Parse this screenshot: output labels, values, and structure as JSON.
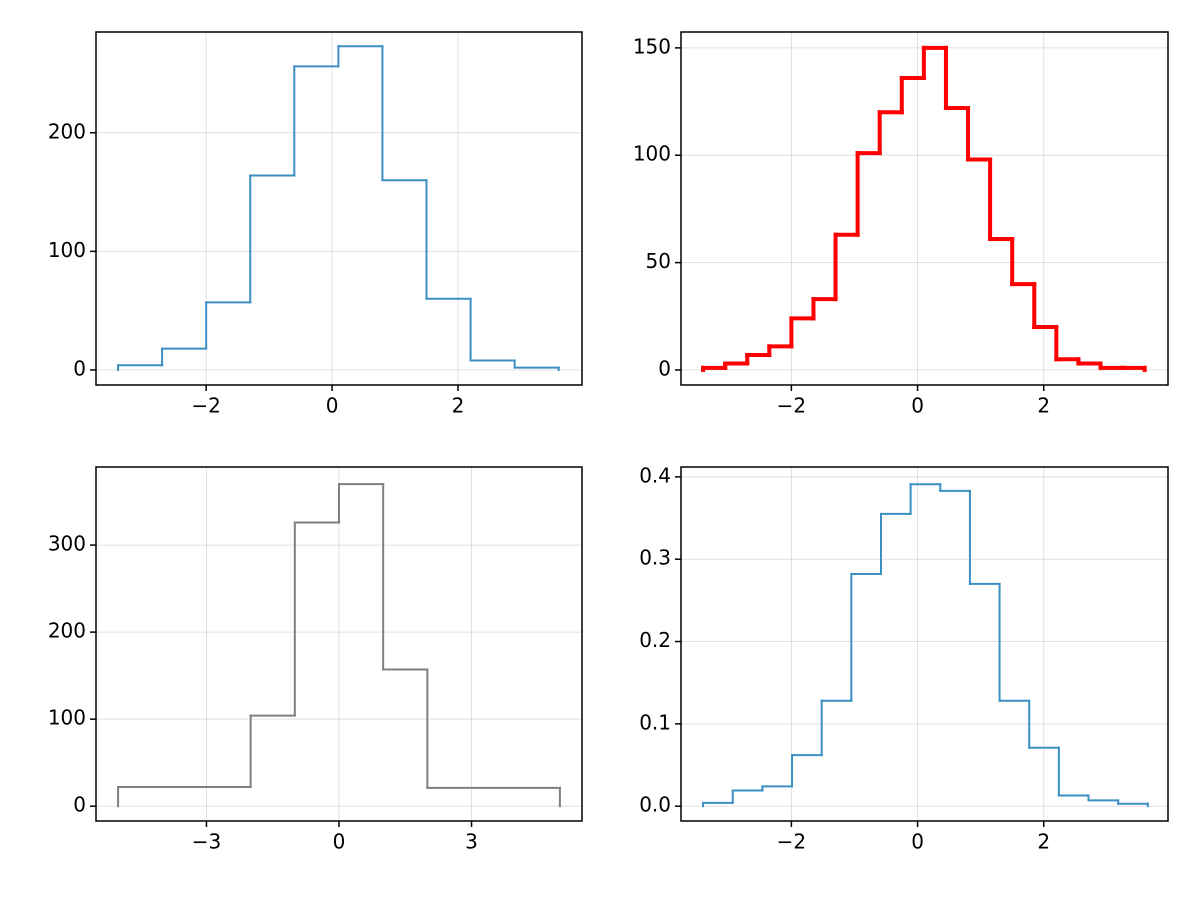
{
  "chart_data": [
    {
      "type": "histogram",
      "color": "#3a8fc3",
      "line_width": 2,
      "bins": [
        -3.4,
        -2.7,
        -2.0,
        -1.3,
        -0.6,
        0.1,
        0.8,
        1.5,
        2.2,
        2.9,
        3.6
      ],
      "values": [
        4,
        18,
        57,
        164,
        256,
        273,
        160,
        60,
        8,
        2
      ],
      "xlim": [
        -3.75,
        3.97
      ],
      "ylim": [
        -12.7,
        285
      ],
      "xticks": [
        {
          "value": -2,
          "label": "−2"
        },
        0,
        2
      ],
      "yticks": [
        0,
        100,
        200
      ],
      "grid": true
    },
    {
      "type": "histogram",
      "color": "#ff0000",
      "line_width": 4,
      "bins": [
        -3.4,
        -3.05,
        -2.7,
        -2.35,
        -2.0,
        -1.65,
        -1.3,
        -0.95,
        -0.6,
        -0.25,
        0.1,
        0.45,
        0.8,
        1.15,
        1.5,
        1.85,
        2.2,
        2.55,
        2.9,
        3.25,
        3.6
      ],
      "values": [
        1,
        3,
        7,
        11,
        24,
        33,
        63,
        101,
        120,
        136,
        150,
        122,
        98,
        61,
        40,
        20,
        5,
        3,
        1,
        1
      ],
      "xlim": [
        -3.75,
        3.97
      ],
      "ylim": [
        -7,
        157.4
      ],
      "xticks": [
        {
          "value": -2,
          "label": "−2"
        },
        0,
        2
      ],
      "yticks": [
        0,
        50,
        100,
        150
      ],
      "grid": true
    },
    {
      "type": "histogram",
      "color": "#808080",
      "line_width": 2,
      "bins": [
        -5,
        -2,
        -1,
        0,
        1,
        2,
        5
      ],
      "values": [
        22,
        104,
        326,
        370,
        157,
        21
      ],
      "xlim": [
        -5.5,
        5.5
      ],
      "ylim": [
        -17,
        389.7
      ],
      "xticks": [
        {
          "value": -3,
          "label": "−3"
        },
        0,
        3
      ],
      "yticks": [
        0,
        100,
        200,
        300
      ],
      "grid": true
    },
    {
      "type": "histogram",
      "color": "#3a8fc3",
      "line_width": 2,
      "bins": [
        -3.4,
        -2.93,
        -2.46,
        -1.99,
        -1.52,
        -1.05,
        -0.58,
        -0.11,
        0.36,
        0.83,
        1.3,
        1.77,
        2.24,
        2.71,
        3.18,
        3.65
      ],
      "values": [
        0.004,
        0.019,
        0.024,
        0.062,
        0.128,
        0.282,
        0.355,
        0.391,
        0.383,
        0.27,
        0.128,
        0.071,
        0.013,
        0.007,
        0.003
      ],
      "xlim": [
        -3.75,
        3.97
      ],
      "ylim": [
        -0.018,
        0.412
      ],
      "xticks": [
        {
          "value": -2,
          "label": "−2"
        },
        0,
        2
      ],
      "yticks": [
        {
          "value": 0,
          "label": "0.0"
        },
        0.1,
        0.2,
        0.3,
        0.4
      ],
      "grid": true
    }
  ]
}
